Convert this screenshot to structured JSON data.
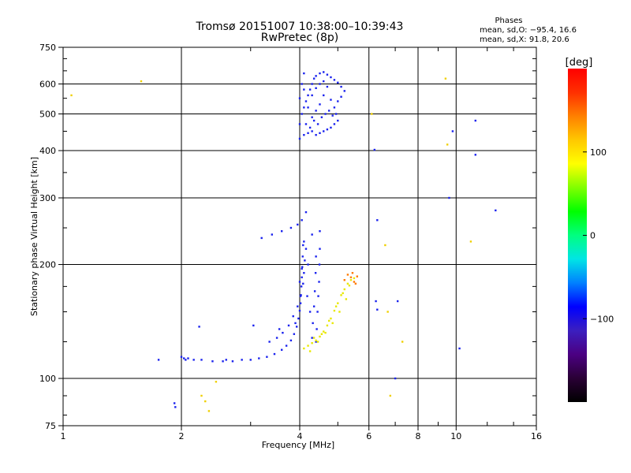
{
  "title": "Tromsø 20151007 10:38:00–10:39:43",
  "subtitle": "RwPretec (8p)",
  "stats": {
    "heading": "Phases",
    "line_o": "mean, sd,O: −95.4, 16.6",
    "line_x": "mean, sd,X:  91.8, 20.6"
  },
  "colorbar": {
    "unit_label": "[deg]",
    "range": [
      -200,
      200
    ],
    "ticks": [
      {
        "value": 100,
        "label": "100"
      },
      {
        "value": 0,
        "label": "0"
      },
      {
        "value": -100,
        "label": "−100"
      }
    ],
    "stops": [
      "#000000",
      "#2a0035",
      "#4b0082",
      "#3b1fbf",
      "#0000ff",
      "#0080ff",
      "#00e5e5",
      "#00ff80",
      "#00ff00",
      "#80ff00",
      "#ffff00",
      "#ffc800",
      "#ff8000",
      "#ff3000",
      "#ff0000"
    ]
  },
  "chart_data": {
    "type": "scatter",
    "title": "Tromsø 20151007 10:38:00–10:39:43",
    "subtitle": "RwPretec (8p)",
    "xlabel": "Frequency [MHz]",
    "ylabel": "Stationary phase Virtual Height [km]",
    "x_scale": "log",
    "y_scale": "log",
    "xlim": [
      1,
      16
    ],
    "ylim": [
      75,
      750
    ],
    "grid": true,
    "x_ticks": [
      {
        "value": 1,
        "label": "1",
        "major": true
      },
      {
        "value": 2,
        "label": "2",
        "major": true
      },
      {
        "value": 4,
        "label": "4",
        "major": true
      },
      {
        "value": 6,
        "label": "6",
        "major": true
      },
      {
        "value": 8,
        "label": "8",
        "major": true
      },
      {
        "value": 10,
        "label": "10",
        "major": true
      },
      {
        "value": 16,
        "label": "16",
        "major": false
      }
    ],
    "y_ticks": [
      {
        "value": 75,
        "label": "75",
        "major": false
      },
      {
        "value": 100,
        "label": "100",
        "major": true
      },
      {
        "value": 200,
        "label": "200",
        "major": true
      },
      {
        "value": 300,
        "label": "300",
        "major": true
      },
      {
        "value": 400,
        "label": "400",
        "major": true
      },
      {
        "value": 500,
        "label": "500",
        "major": true
      },
      {
        "value": 600,
        "label": "600",
        "major": true
      },
      {
        "value": 750,
        "label": "750",
        "major": false
      }
    ],
    "series": [
      {
        "trace": "o_mode_e_f",
        "color": "#1a22ee",
        "points": [
          [
            2.0,
            114
          ],
          [
            2.03,
            113
          ],
          [
            2.08,
            113
          ],
          [
            2.15,
            112
          ],
          [
            2.25,
            112
          ],
          [
            2.4,
            111
          ],
          [
            2.55,
            111
          ],
          [
            2.7,
            111
          ],
          [
            2.85,
            112
          ],
          [
            3.0,
            112
          ],
          [
            3.15,
            113
          ],
          [
            3.3,
            114
          ],
          [
            3.45,
            116
          ],
          [
            3.6,
            119
          ],
          [
            3.7,
            122
          ],
          [
            3.8,
            126
          ],
          [
            3.87,
            131
          ],
          [
            3.93,
            137
          ],
          [
            3.97,
            144
          ],
          [
            4.0,
            151
          ],
          [
            4.02,
            158
          ],
          [
            4.03,
            166
          ],
          [
            4.04,
            175
          ],
          [
            4.05,
            185
          ],
          [
            4.06,
            197
          ],
          [
            4.07,
            210
          ],
          [
            4.08,
            225
          ],
          [
            3.2,
            235
          ],
          [
            3.4,
            240
          ],
          [
            3.6,
            245
          ],
          [
            3.8,
            250
          ],
          [
            3.95,
            255
          ],
          [
            4.05,
            262
          ],
          [
            4.15,
            275
          ],
          [
            3.5,
            128
          ],
          [
            3.62,
            132
          ],
          [
            3.75,
            138
          ],
          [
            3.85,
            146
          ],
          [
            3.95,
            155
          ],
          [
            4.02,
            165
          ],
          [
            4.08,
            178
          ],
          [
            4.1,
            190
          ],
          [
            4.12,
            205
          ],
          [
            4.15,
            220
          ],
          [
            4.4,
            125
          ],
          [
            4.42,
            135
          ],
          [
            4.44,
            150
          ],
          [
            4.46,
            165
          ],
          [
            4.48,
            180
          ],
          [
            4.49,
            200
          ],
          [
            4.5,
            220
          ],
          [
            4.5,
            245
          ],
          [
            4.3,
            128
          ],
          [
            4.32,
            140
          ],
          [
            4.35,
            155
          ],
          [
            4.37,
            170
          ],
          [
            4.39,
            190
          ],
          [
            4.4,
            210
          ],
          [
            3.9,
            140
          ],
          [
            4.0,
            180
          ],
          [
            4.2,
            200
          ],
          [
            4.25,
            150
          ],
          [
            4.1,
            230
          ],
          [
            4.3,
            240
          ],
          [
            3.35,
            125
          ],
          [
            3.55,
            135
          ],
          [
            4.05,
            195
          ],
          [
            4.18,
            165
          ],
          [
            2.05,
            112
          ],
          [
            2.6,
            112
          ]
        ]
      },
      {
        "trace": "o_mode_f2",
        "color": "#1a22ee",
        "points": [
          [
            4.0,
            430
          ],
          [
            4.1,
            440
          ],
          [
            4.2,
            445
          ],
          [
            4.3,
            450
          ],
          [
            4.4,
            440
          ],
          [
            4.5,
            445
          ],
          [
            4.6,
            450
          ],
          [
            4.7,
            455
          ],
          [
            4.8,
            460
          ],
          [
            4.9,
            470
          ],
          [
            5.0,
            480
          ],
          [
            4.0,
            470
          ],
          [
            4.05,
            500
          ],
          [
            4.1,
            520
          ],
          [
            4.15,
            540
          ],
          [
            4.2,
            560
          ],
          [
            4.25,
            580
          ],
          [
            4.3,
            600
          ],
          [
            4.35,
            620
          ],
          [
            4.4,
            630
          ],
          [
            4.5,
            640
          ],
          [
            4.6,
            645
          ],
          [
            4.7,
            635
          ],
          [
            4.8,
            625
          ],
          [
            4.9,
            615
          ],
          [
            5.0,
            605
          ],
          [
            5.1,
            590
          ],
          [
            5.2,
            575
          ],
          [
            4.0,
            550
          ],
          [
            4.05,
            600
          ],
          [
            4.1,
            640
          ],
          [
            4.2,
            520
          ],
          [
            4.3,
            490
          ],
          [
            4.4,
            510
          ],
          [
            4.5,
            530
          ],
          [
            4.6,
            560
          ],
          [
            4.7,
            590
          ],
          [
            4.8,
            545
          ],
          [
            4.9,
            520
          ],
          [
            5.0,
            540
          ],
          [
            5.1,
            555
          ],
          [
            4.15,
            470
          ],
          [
            4.25,
            460
          ],
          [
            4.35,
            480
          ],
          [
            4.45,
            470
          ],
          [
            4.55,
            490
          ],
          [
            4.65,
            500
          ],
          [
            4.75,
            510
          ],
          [
            4.85,
            495
          ],
          [
            4.95,
            500
          ],
          [
            4.1,
            580
          ],
          [
            4.3,
            560
          ],
          [
            4.5,
            600
          ],
          [
            4.6,
            610
          ],
          [
            4.4,
            585
          ]
        ]
      },
      {
        "trace": "x_mode",
        "color": "#e8e800",
        "points": [
          [
            4.1,
            120
          ],
          [
            4.2,
            122
          ],
          [
            4.3,
            124
          ],
          [
            4.4,
            126
          ],
          [
            4.5,
            129
          ],
          [
            4.6,
            133
          ],
          [
            4.7,
            138
          ],
          [
            4.8,
            144
          ],
          [
            4.9,
            151
          ],
          [
            5.0,
            158
          ],
          [
            5.1,
            166
          ],
          [
            5.2,
            172
          ],
          [
            5.3,
            178
          ],
          [
            5.4,
            182
          ],
          [
            5.5,
            184
          ],
          [
            4.25,
            118
          ],
          [
            4.45,
            125
          ],
          [
            4.65,
            132
          ],
          [
            4.85,
            140
          ],
          [
            5.05,
            150
          ],
          [
            5.25,
            162
          ],
          [
            4.35,
            128
          ],
          [
            4.55,
            131
          ],
          [
            4.75,
            142
          ],
          [
            4.95,
            155
          ],
          [
            5.15,
            168
          ],
          [
            5.35,
            176
          ]
        ]
      },
      {
        "trace": "x_mode_top",
        "color": "#ff7a00",
        "points": [
          [
            5.4,
            185
          ],
          [
            5.5,
            180
          ],
          [
            5.55,
            178
          ],
          [
            5.45,
            190
          ],
          [
            5.3,
            188
          ],
          [
            5.2,
            182
          ],
          [
            5.6,
            186
          ]
        ]
      },
      {
        "trace": "scattered_echoes",
        "color": "#1a22ee",
        "points": [
          [
            1.75,
            112
          ],
          [
            1.92,
            86
          ],
          [
            1.93,
            84
          ],
          [
            2.22,
            137
          ],
          [
            3.05,
            138
          ],
          [
            6.2,
            402
          ],
          [
            6.3,
            262
          ],
          [
            6.25,
            160
          ],
          [
            6.3,
            152
          ],
          [
            7.0,
            100
          ],
          [
            7.1,
            160
          ],
          [
            9.6,
            300
          ],
          [
            9.8,
            450
          ],
          [
            11.2,
            480
          ],
          [
            11.2,
            390
          ],
          [
            10.2,
            120
          ],
          [
            12.6,
            278
          ]
        ]
      },
      {
        "trace": "scattered_warm",
        "color": "#f0d000",
        "points": [
          [
            1.05,
            560
          ],
          [
            1.58,
            610
          ],
          [
            2.25,
            90
          ],
          [
            2.3,
            87
          ],
          [
            2.35,
            82
          ],
          [
            2.45,
            98
          ],
          [
            6.1,
            500
          ],
          [
            6.6,
            225
          ],
          [
            6.8,
            90
          ],
          [
            9.5,
            415
          ],
          [
            9.4,
            620
          ],
          [
            10.9,
            230
          ],
          [
            6.7,
            150
          ],
          [
            7.3,
            125
          ]
        ]
      }
    ]
  }
}
